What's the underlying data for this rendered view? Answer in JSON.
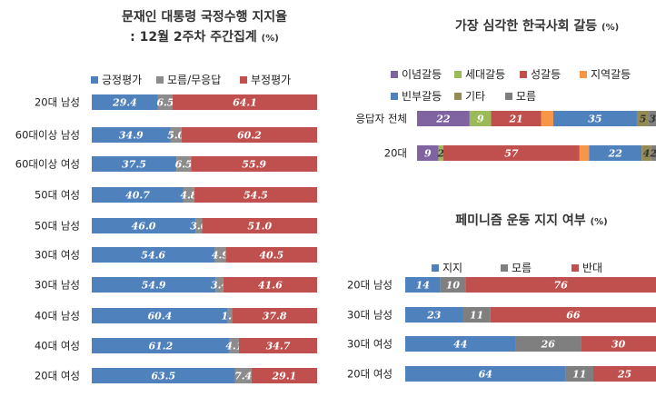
{
  "charts": {
    "approval": {
      "title1": "문재인 대통령 국정수행 지지율",
      "title2": ": 12월 2주차 주간집계",
      "unit": "(%)"
    },
    "conflict": {
      "title": "가장 심각한 한국사회 갈등",
      "unit": "(%)"
    },
    "feminism": {
      "title": "페미니즘 운동 지지 여부",
      "unit": "(%)"
    }
  },
  "colors": {
    "positive": "#4f81bd",
    "unknown": "#8c8c8c",
    "negative": "#c0504d",
    "ideology": "#8064a2",
    "generation": "#9bbb59",
    "gender": "#c0504d",
    "region": "#f79646",
    "wealth": "#4f81bd",
    "other": "#948a54",
    "dontknow": "#7f7f7f"
  },
  "chart_data": [
    {
      "type": "bar",
      "stacked": true,
      "orientation": "horizontal",
      "title": "문재인 대통령 국정수행 지지율 : 12월 2주차 주간집계 (%)",
      "categories": [
        "20대 남성",
        "60대이상 남성",
        "60대이상 여성",
        "50대 여성",
        "50대 남성",
        "30대 여성",
        "30대 남성",
        "40대 남성",
        "40대 여성",
        "20대 여성"
      ],
      "series": [
        {
          "name": "긍정평가",
          "color": "#4f81bd",
          "values": [
            29.4,
            34.9,
            37.5,
            40.7,
            46.0,
            54.6,
            54.9,
            60.4,
            61.2,
            63.5
          ],
          "labels": [
            "29.4",
            "34.9",
            "37.5",
            "40.7",
            "46.0",
            "54.6",
            "54.9",
            "60.4",
            "61.2",
            "63.5"
          ]
        },
        {
          "name": "모름/무응답",
          "color": "#8c8c8c",
          "values": [
            6.5,
            5.0,
            6.5,
            4.8,
            3.0,
            4.9,
            3.4,
            1.8,
            4.1,
            7.4
          ],
          "labels": [
            "6.5",
            "5.0",
            "6.5",
            "4.8",
            "3.0",
            "4.9",
            "3.4",
            "1.8",
            "4.1",
            "7.4"
          ]
        },
        {
          "name": "부정평가",
          "color": "#c0504d",
          "values": [
            64.1,
            60.2,
            55.9,
            54.5,
            51.0,
            40.5,
            41.6,
            37.8,
            34.7,
            29.1
          ],
          "labels": [
            "64.1",
            "60.2",
            "55.9",
            "54.5",
            "51.0",
            "40.5",
            "41.6",
            "37.8",
            "34.7",
            "29.1"
          ]
        }
      ]
    },
    {
      "type": "bar",
      "stacked": true,
      "orientation": "horizontal",
      "title": "가장 심각한 한국사회 갈등 (%)",
      "categories": [
        "응답자 전체",
        "20대"
      ],
      "series": [
        {
          "name": "이념갈등",
          "color": "#8064a2",
          "values": [
            22,
            9
          ],
          "labels": [
            "22",
            "9"
          ]
        },
        {
          "name": "세대갈등",
          "color": "#9bbb59",
          "values": [
            9,
            2
          ],
          "labels": [
            "9",
            "2"
          ]
        },
        {
          "name": "성갈등",
          "color": "#c0504d",
          "values": [
            21,
            57
          ],
          "labels": [
            "21",
            "57"
          ]
        },
        {
          "name": "지역갈등",
          "color": "#f79646",
          "values": [
            5,
            4
          ],
          "labels": [
            "",
            ""
          ]
        },
        {
          "name": "빈부갈등",
          "color": "#4f81bd",
          "values": [
            35,
            22
          ],
          "labels": [
            "35",
            "22"
          ]
        },
        {
          "name": "기타",
          "color": "#948a54",
          "values": [
            5,
            4
          ],
          "labels": [
            "5",
            "4"
          ]
        },
        {
          "name": "모름",
          "color": "#7f7f7f",
          "values": [
            3,
            2
          ],
          "labels": [
            "3",
            "2"
          ]
        }
      ]
    },
    {
      "type": "bar",
      "stacked": true,
      "orientation": "horizontal",
      "title": "페미니즘 운동 지지 여부 (%)",
      "categories": [
        "20대 남성",
        "30대 남성",
        "30대 여성",
        "20대 여성"
      ],
      "series": [
        {
          "name": "지지",
          "color": "#4f81bd",
          "values": [
            14,
            23,
            44,
            64
          ],
          "labels": [
            "14",
            "23",
            "44",
            "64"
          ]
        },
        {
          "name": "모름",
          "color": "#7f7f7f",
          "values": [
            10,
            11,
            26,
            11
          ],
          "labels": [
            "10",
            "11",
            "26",
            "11"
          ]
        },
        {
          "name": "반대",
          "color": "#c0504d",
          "values": [
            76,
            66,
            30,
            25
          ],
          "labels": [
            "76",
            "66",
            "30",
            "25"
          ]
        }
      ]
    }
  ]
}
